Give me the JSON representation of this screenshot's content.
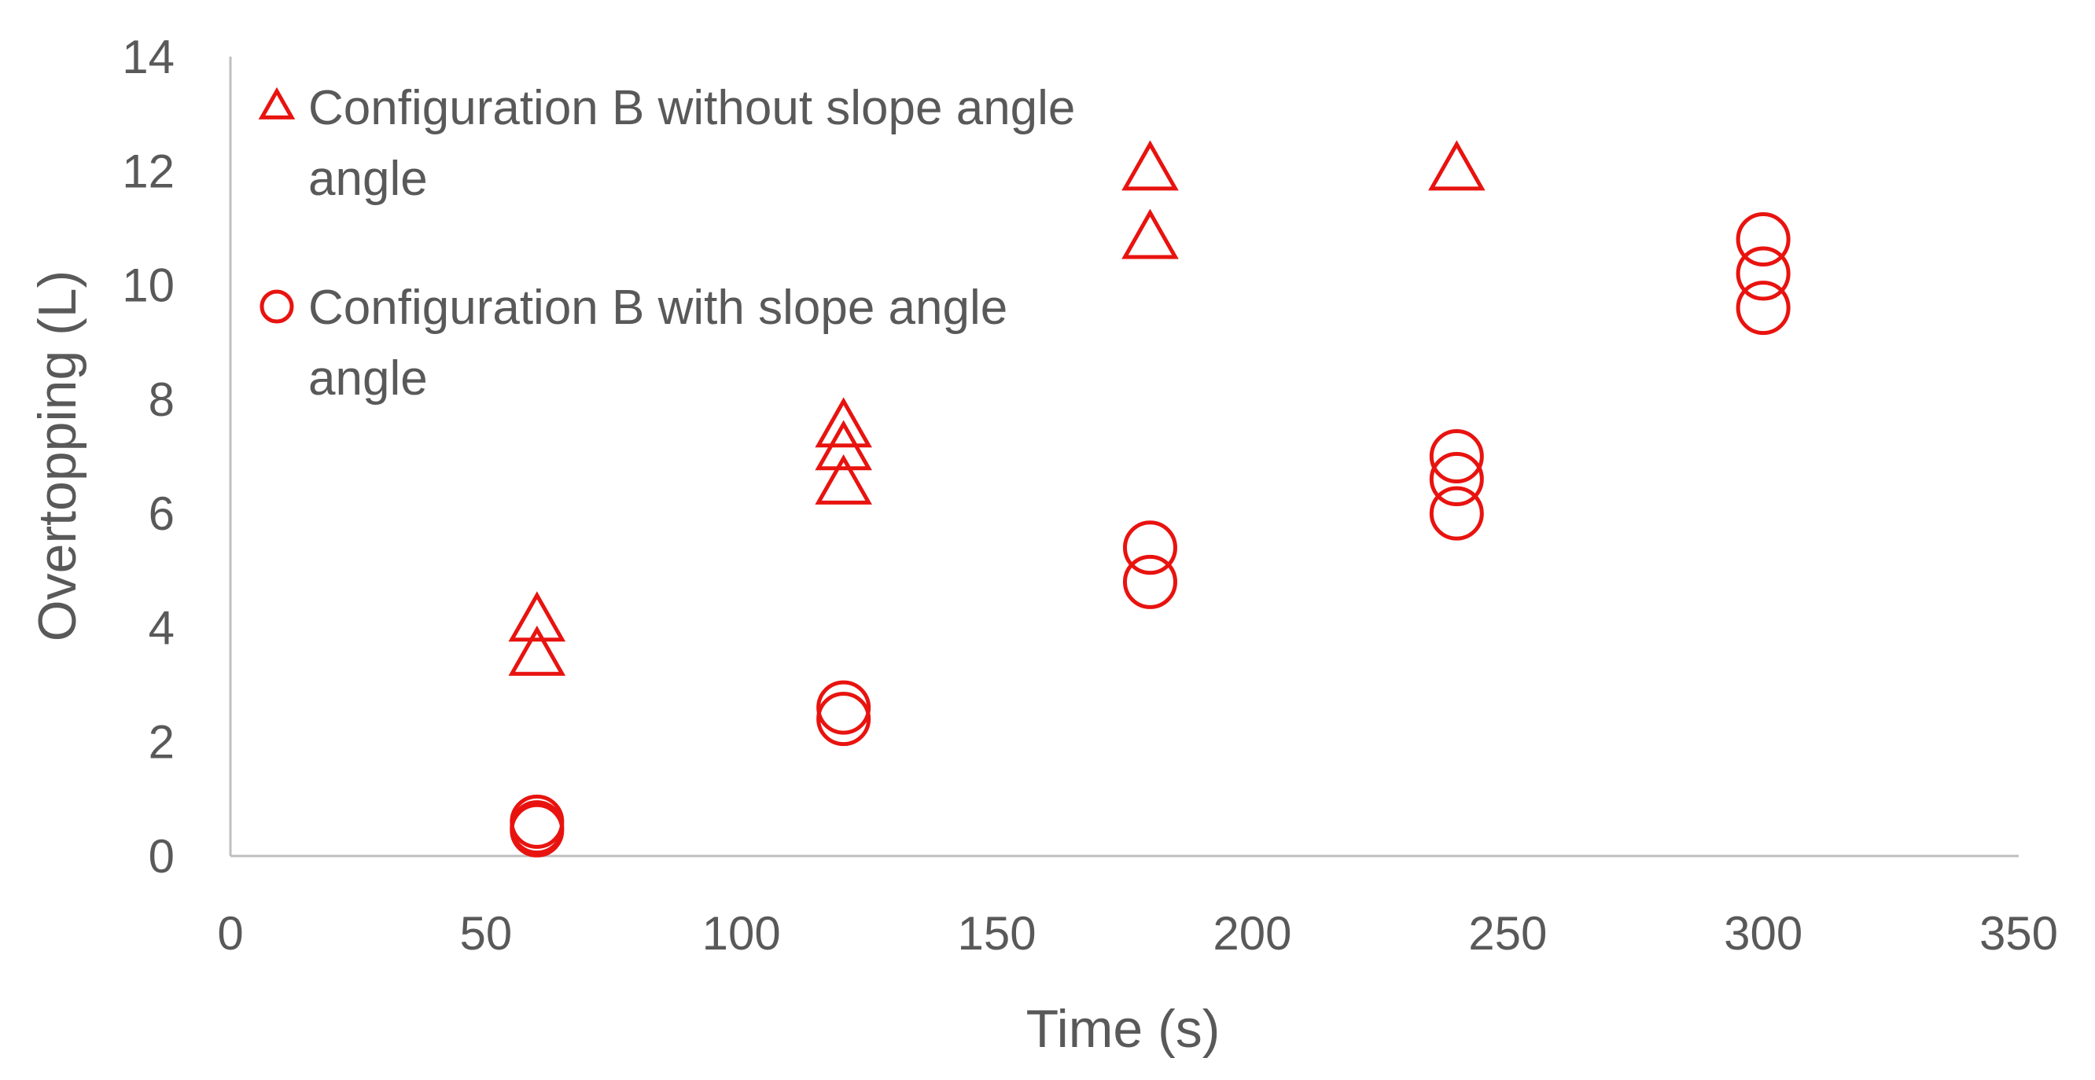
{
  "chart_data": {
    "type": "scatter",
    "title": "",
    "xlabel": "Time (s)",
    "ylabel": "Overtopping (L)",
    "xlim": [
      0,
      350
    ],
    "ylim": [
      0,
      14
    ],
    "xticks": [
      0,
      50,
      100,
      150,
      200,
      250,
      300,
      350
    ],
    "yticks": [
      0,
      2,
      4,
      6,
      8,
      10,
      12,
      14
    ],
    "grid": false,
    "legend_position": "top-left",
    "series": [
      {
        "name": "Configuration B without slope angle",
        "legend_lines": [
          "Configuration B without slope angle",
          "angle"
        ],
        "marker": "triangle",
        "color": "#e8130f",
        "points": [
          [
            60,
            4.1
          ],
          [
            60,
            3.5
          ],
          [
            120,
            7.5
          ],
          [
            120,
            7.1
          ],
          [
            120,
            6.5
          ],
          [
            180,
            12.0
          ],
          [
            180,
            10.8
          ],
          [
            240,
            12.0
          ]
        ]
      },
      {
        "name": "Configuration B with slope angle",
        "legend_lines": [
          "Configuration B with slope angle",
          "angle"
        ],
        "marker": "circle",
        "color": "#e8130f",
        "points": [
          [
            60,
            0.6
          ],
          [
            60,
            0.5
          ],
          [
            60,
            0.45
          ],
          [
            120,
            2.6
          ],
          [
            120,
            2.4
          ],
          [
            180,
            5.4
          ],
          [
            180,
            4.8
          ],
          [
            240,
            7.0
          ],
          [
            240,
            6.6
          ],
          [
            240,
            6.0
          ],
          [
            300,
            10.8
          ],
          [
            300,
            10.2
          ],
          [
            300,
            9.6
          ]
        ]
      }
    ]
  }
}
